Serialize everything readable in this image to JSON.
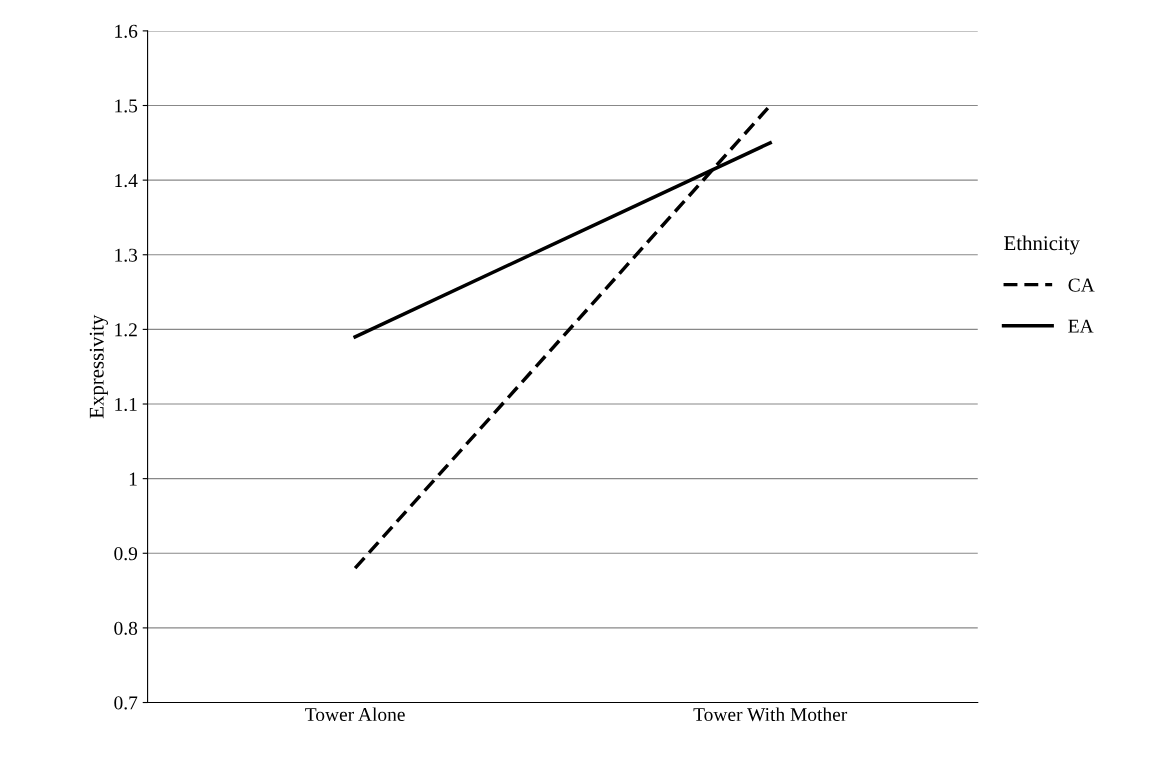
{
  "chart_data": {
    "type": "line",
    "ylabel": "Expressivity",
    "legend_title": "Ethnicity",
    "categories": [
      "Tower Alone",
      "Tower With Mother"
    ],
    "series": [
      {
        "name": "CA",
        "color": "#000000",
        "values": [
          0.88,
          1.5
        ],
        "line_style": "dashed"
      },
      {
        "name": "EA",
        "color": "#000000",
        "values": [
          1.19,
          1.45
        ],
        "line_style": "solid"
      }
    ],
    "ylim": [
      0.7,
      1.6
    ],
    "yticks": [
      0.7,
      0.8,
      0.9,
      1,
      1.1,
      1.2,
      1.3,
      1.4,
      1.5,
      1.6
    ],
    "grid": "y",
    "legend": "right",
    "marker": "none"
  }
}
